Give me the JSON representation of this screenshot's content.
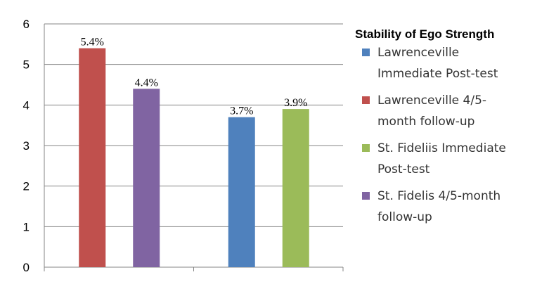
{
  "chart_data": {
    "type": "bar",
    "title": "",
    "xlabel": "",
    "ylabel": "",
    "ylim": [
      0,
      6
    ],
    "yticks": [
      0,
      1,
      2,
      3,
      4,
      5,
      6
    ],
    "grid": "horizontal",
    "legend_title": "Stability of Ego Strength",
    "legend_position": "right",
    "groups": [
      [
        "Lawrenceville 4/5-month follow-up",
        "St. Fidelis 4/5-month follow-up"
      ],
      [
        "Lawrenceville Immediate Post-test",
        "St. Fideliis Immediate Post-test"
      ]
    ],
    "series": [
      {
        "name": "Lawrenceville Immediate Post-test",
        "value": 3.7,
        "label": "3.7%",
        "color": "#4F81BD",
        "legend_lines": [
          "Lawrenceville",
          "Immediate Post-test"
        ]
      },
      {
        "name": "Lawrenceville 4/5-month follow-up",
        "value": 5.4,
        "label": "5.4%",
        "color": "#C0504D",
        "legend_lines": [
          "Lawrenceville 4/5-",
          "month follow-up"
        ]
      },
      {
        "name": "St. Fideliis Immediate Post-test",
        "value": 3.9,
        "label": "3.9%",
        "color": "#9BBB59",
        "legend_lines": [
          "St. Fideliis Immediate",
          "Post-test"
        ]
      },
      {
        "name": "St. Fidelis 4/5-month follow-up",
        "value": 4.4,
        "label": "4.4%",
        "color": "#8064A2",
        "legend_lines": [
          "St. Fidelis 4/5-month",
          "follow-up"
        ]
      }
    ]
  }
}
